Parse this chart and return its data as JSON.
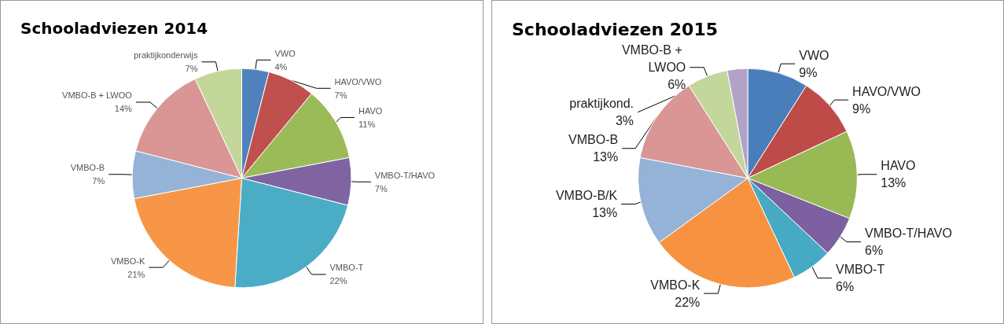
{
  "chart_data": [
    {
      "type": "pie",
      "title": "Schooladviezen 2014",
      "categories": [
        "VWO",
        "HAVO/VWO",
        "HAVO",
        "VMBO-T/HAVO",
        "VMBO-T",
        "VMBO-K",
        "VMBO-B",
        "VMBO-B + LWOO",
        "praktijkonderwijs"
      ],
      "values": [
        4,
        7,
        11,
        7,
        22,
        21,
        7,
        14,
        7
      ],
      "value_labels": [
        "4%",
        "7%",
        "11%",
        "7%",
        "22%",
        "21%",
        "7%",
        "14%",
        "7%"
      ],
      "colors": [
        "#4f81bd",
        "#c0504d",
        "#9bbb59",
        "#8064a2",
        "#4bacc6",
        "#f79646",
        "#95b3d7",
        "#da9694",
        "#c4d79b"
      ],
      "legend": false
    },
    {
      "type": "pie",
      "title": "Schooladviezen 2015",
      "categories": [
        "VWO",
        "HAVO/VWO",
        "HAVO",
        "VMBO-T/HAVO",
        "VMBO-T",
        "VMBO-K",
        "VMBO-B/K",
        "VMBO-B",
        "VMBO-B + LWOO",
        "praktijkond."
      ],
      "values": [
        9,
        9,
        13,
        6,
        6,
        22,
        13,
        13,
        6,
        3
      ],
      "value_labels": [
        "9%",
        "9%",
        "13%",
        "6%",
        "6%",
        "22%",
        "13%",
        "13%",
        "6%",
        "3%"
      ],
      "colors": [
        "#4a7ebb",
        "#be4b48",
        "#98b954",
        "#7d60a0",
        "#46aac5",
        "#f69240",
        "#95b3d7",
        "#d99694",
        "#c3d69b",
        "#b3a2c7"
      ],
      "legend": false
    }
  ]
}
